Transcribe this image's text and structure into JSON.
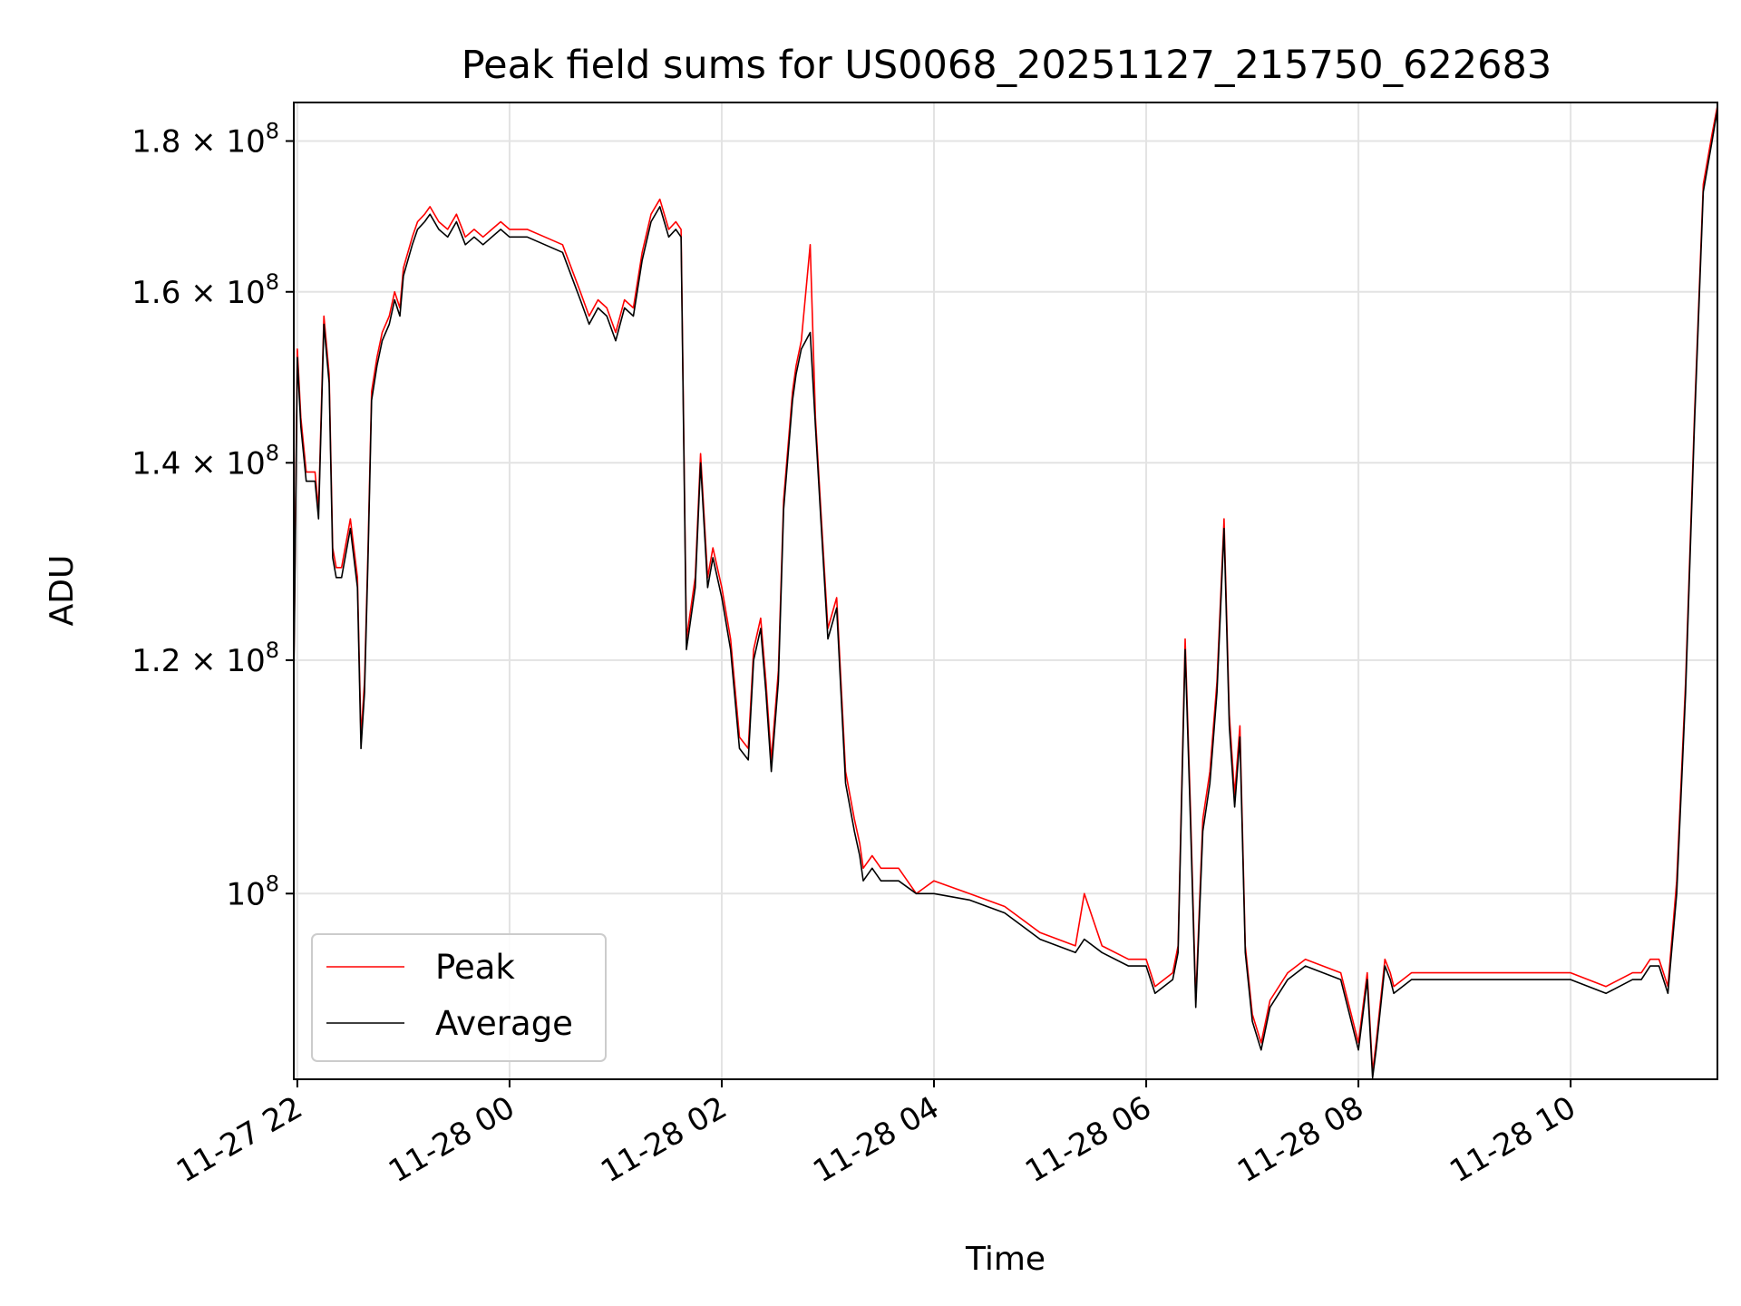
{
  "chart_data": {
    "type": "line",
    "title": "Peak field sums for US0068_20251127_215750_622683",
    "xlabel": "Time",
    "ylabel": "ADU",
    "yscale": "log",
    "grid": true,
    "legend_position": "lower-left",
    "xlim": [
      "2025-11-27 21:58",
      "2025-11-28 11:23"
    ],
    "ylim": [
      86500000,
      185500000
    ],
    "x_ticks": [
      {
        "t": "2025-11-27 22:00",
        "label": "11-27 22"
      },
      {
        "t": "2025-11-28 00:00",
        "label": "11-28 00"
      },
      {
        "t": "2025-11-28 02:00",
        "label": "11-28 02"
      },
      {
        "t": "2025-11-28 04:00",
        "label": "11-28 04"
      },
      {
        "t": "2025-11-28 06:00",
        "label": "11-28 06"
      },
      {
        "t": "2025-11-28 08:00",
        "label": "11-28 08"
      },
      {
        "t": "2025-11-28 10:00",
        "label": "11-28 10"
      }
    ],
    "y_ticks": [
      {
        "value": 120000000,
        "mant": "1.2",
        "exp": "8"
      },
      {
        "value": 140000000,
        "mant": "1.4",
        "exp": "8"
      },
      {
        "value": 160000000,
        "mant": "1.6",
        "exp": "8"
      },
      {
        "value": 180000000,
        "mant": "1.8",
        "exp": "8"
      },
      {
        "value": 100000000,
        "mant": "",
        "exp": "8"
      }
    ],
    "series": [
      {
        "name": "Peak",
        "color": "#ff0000",
        "x": [
          "2025-11-27 21:58",
          "2025-11-27 22:00",
          "2025-11-27 22:02",
          "2025-11-27 22:05",
          "2025-11-27 22:10",
          "2025-11-27 22:12",
          "2025-11-27 22:15",
          "2025-11-27 22:18",
          "2025-11-27 22:20",
          "2025-11-27 22:22",
          "2025-11-27 22:25",
          "2025-11-27 22:30",
          "2025-11-27 22:34",
          "2025-11-27 22:36",
          "2025-11-27 22:38",
          "2025-11-27 22:40",
          "2025-11-27 22:42",
          "2025-11-27 22:45",
          "2025-11-27 22:48",
          "2025-11-27 22:52",
          "2025-11-27 22:55",
          "2025-11-27 22:58",
          "2025-11-27 23:00",
          "2025-11-27 23:05",
          "2025-11-27 23:08",
          "2025-11-27 23:12",
          "2025-11-27 23:15",
          "2025-11-27 23:20",
          "2025-11-27 23:25",
          "2025-11-27 23:30",
          "2025-11-27 23:35",
          "2025-11-27 23:40",
          "2025-11-27 23:45",
          "2025-11-27 23:50",
          "2025-11-27 23:55",
          "2025-11-28 00:00",
          "2025-11-28 00:10",
          "2025-11-28 00:20",
          "2025-11-28 00:30",
          "2025-11-28 00:40",
          "2025-11-28 00:45",
          "2025-11-28 00:50",
          "2025-11-28 00:55",
          "2025-11-28 01:00",
          "2025-11-28 01:05",
          "2025-11-28 01:10",
          "2025-11-28 01:15",
          "2025-11-28 01:20",
          "2025-11-28 01:25",
          "2025-11-28 01:30",
          "2025-11-28 01:34",
          "2025-11-28 01:37",
          "2025-11-28 01:40",
          "2025-11-28 01:45",
          "2025-11-28 01:48",
          "2025-11-28 01:52",
          "2025-11-28 01:55",
          "2025-11-28 02:00",
          "2025-11-28 02:05",
          "2025-11-28 02:10",
          "2025-11-28 02:15",
          "2025-11-28 02:18",
          "2025-11-28 02:22",
          "2025-11-28 02:25",
          "2025-11-28 02:28",
          "2025-11-28 02:32",
          "2025-11-28 02:35",
          "2025-11-28 02:40",
          "2025-11-28 02:42",
          "2025-11-28 02:45",
          "2025-11-28 02:50",
          "2025-11-28 02:53",
          "2025-11-28 02:56",
          "2025-11-28 03:00",
          "2025-11-28 03:05",
          "2025-11-28 03:10",
          "2025-11-28 03:15",
          "2025-11-28 03:18",
          "2025-11-28 03:20",
          "2025-11-28 03:25",
          "2025-11-28 03:30",
          "2025-11-28 03:40",
          "2025-11-28 03:50",
          "2025-11-28 04:00",
          "2025-11-28 04:20",
          "2025-11-28 04:40",
          "2025-11-28 05:00",
          "2025-11-28 05:20",
          "2025-11-28 05:25",
          "2025-11-28 05:35",
          "2025-11-28 05:50",
          "2025-11-28 06:00",
          "2025-11-28 06:05",
          "2025-11-28 06:15",
          "2025-11-28 06:18",
          "2025-11-28 06:22",
          "2025-11-28 06:25",
          "2025-11-28 06:28",
          "2025-11-28 06:32",
          "2025-11-28 06:36",
          "2025-11-28 06:40",
          "2025-11-28 06:44",
          "2025-11-28 06:47",
          "2025-11-28 06:50",
          "2025-11-28 06:53",
          "2025-11-28 06:56",
          "2025-11-28 07:00",
          "2025-11-28 07:05",
          "2025-11-28 07:10",
          "2025-11-28 07:20",
          "2025-11-28 07:30",
          "2025-11-28 07:50",
          "2025-11-28 08:00",
          "2025-11-28 08:05",
          "2025-11-28 08:08",
          "2025-11-28 08:10",
          "2025-11-28 08:15",
          "2025-11-28 08:18",
          "2025-11-28 08:20",
          "2025-11-28 08:30",
          "2025-11-28 09:00",
          "2025-11-28 09:15",
          "2025-11-28 09:30",
          "2025-11-28 10:00",
          "2025-11-28 10:20",
          "2025-11-28 10:35",
          "2025-11-28 10:40",
          "2025-11-28 10:45",
          "2025-11-28 10:50",
          "2025-11-28 10:55",
          "2025-11-28 11:00",
          "2025-11-28 11:05",
          "2025-11-28 11:10",
          "2025-11-28 11:15",
          "2025-11-28 11:20",
          "2025-11-28 11:23"
        ],
        "values": [
          119000000,
          153000000,
          145000000,
          139000000,
          139000000,
          135000000,
          157000000,
          150000000,
          131000000,
          129000000,
          129000000,
          134000000,
          128000000,
          113000000,
          118000000,
          131000000,
          148000000,
          152000000,
          155000000,
          157000000,
          160000000,
          158000000,
          163000000,
          167000000,
          169000000,
          170000000,
          171000000,
          169000000,
          168000000,
          170000000,
          167000000,
          168000000,
          167000000,
          168000000,
          169000000,
          168000000,
          168000000,
          167000000,
          166000000,
          160000000,
          157000000,
          159000000,
          158000000,
          155000000,
          159000000,
          158000000,
          165000000,
          170000000,
          172000000,
          168000000,
          169000000,
          168000000,
          122000000,
          128000000,
          141000000,
          128000000,
          131000000,
          127000000,
          122000000,
          113000000,
          112000000,
          121000000,
          124000000,
          118000000,
          111000000,
          119000000,
          136000000,
          148000000,
          151000000,
          154000000,
          166000000,
          145000000,
          135000000,
          123000000,
          126000000,
          110000000,
          106000000,
          104000000,
          102000000,
          103000000,
          102000000,
          102000000,
          100000000,
          101000000,
          100000000,
          99000000,
          97000000,
          96000000,
          100000000,
          96000000,
          95000000,
          95000000,
          93000000,
          94000000,
          96000000,
          122000000,
          107000000,
          92000000,
          106000000,
          110000000,
          118000000,
          134000000,
          115000000,
          108000000,
          114000000,
          96000000,
          91000000,
          89000000,
          92000000,
          94000000,
          95000000,
          94000000,
          89000000,
          94000000,
          87000000,
          89000000,
          95000000,
          94000000,
          93000000,
          94000000,
          94000000,
          94000000,
          94000000,
          94000000,
          93000000,
          94000000,
          94000000,
          95000000,
          95000000,
          93000000,
          101000000,
          118000000,
          145000000,
          174000000,
          181000000,
          185000000
        ]
      },
      {
        "name": "Average",
        "color": "#000000",
        "x": [
          "2025-11-27 21:58",
          "2025-11-27 22:00",
          "2025-11-27 22:02",
          "2025-11-27 22:05",
          "2025-11-27 22:10",
          "2025-11-27 22:12",
          "2025-11-27 22:15",
          "2025-11-27 22:18",
          "2025-11-27 22:20",
          "2025-11-27 22:22",
          "2025-11-27 22:25",
          "2025-11-27 22:30",
          "2025-11-27 22:34",
          "2025-11-27 22:36",
          "2025-11-27 22:38",
          "2025-11-27 22:40",
          "2025-11-27 22:42",
          "2025-11-27 22:45",
          "2025-11-27 22:48",
          "2025-11-27 22:52",
          "2025-11-27 22:55",
          "2025-11-27 22:58",
          "2025-11-27 23:00",
          "2025-11-27 23:05",
          "2025-11-27 23:08",
          "2025-11-27 23:12",
          "2025-11-27 23:15",
          "2025-11-27 23:20",
          "2025-11-27 23:25",
          "2025-11-27 23:30",
          "2025-11-27 23:35",
          "2025-11-27 23:40",
          "2025-11-27 23:45",
          "2025-11-27 23:50",
          "2025-11-27 23:55",
          "2025-11-28 00:00",
          "2025-11-28 00:10",
          "2025-11-28 00:20",
          "2025-11-28 00:30",
          "2025-11-28 00:40",
          "2025-11-28 00:45",
          "2025-11-28 00:50",
          "2025-11-28 00:55",
          "2025-11-28 01:00",
          "2025-11-28 01:05",
          "2025-11-28 01:10",
          "2025-11-28 01:15",
          "2025-11-28 01:20",
          "2025-11-28 01:25",
          "2025-11-28 01:30",
          "2025-11-28 01:34",
          "2025-11-28 01:37",
          "2025-11-28 01:40",
          "2025-11-28 01:45",
          "2025-11-28 01:48",
          "2025-11-28 01:52",
          "2025-11-28 01:55",
          "2025-11-28 02:00",
          "2025-11-28 02:05",
          "2025-11-28 02:10",
          "2025-11-28 02:15",
          "2025-11-28 02:18",
          "2025-11-28 02:22",
          "2025-11-28 02:25",
          "2025-11-28 02:28",
          "2025-11-28 02:32",
          "2025-11-28 02:35",
          "2025-11-28 02:40",
          "2025-11-28 02:42",
          "2025-11-28 02:45",
          "2025-11-28 02:50",
          "2025-11-28 02:53",
          "2025-11-28 02:56",
          "2025-11-28 03:00",
          "2025-11-28 03:05",
          "2025-11-28 03:10",
          "2025-11-28 03:15",
          "2025-11-28 03:18",
          "2025-11-28 03:20",
          "2025-11-28 03:25",
          "2025-11-28 03:30",
          "2025-11-28 03:40",
          "2025-11-28 03:50",
          "2025-11-28 04:00",
          "2025-11-28 04:20",
          "2025-11-28 04:40",
          "2025-11-28 05:00",
          "2025-11-28 05:20",
          "2025-11-28 05:25",
          "2025-11-28 05:35",
          "2025-11-28 05:50",
          "2025-11-28 06:00",
          "2025-11-28 06:05",
          "2025-11-28 06:15",
          "2025-11-28 06:18",
          "2025-11-28 06:22",
          "2025-11-28 06:25",
          "2025-11-28 06:28",
          "2025-11-28 06:32",
          "2025-11-28 06:36",
          "2025-11-28 06:40",
          "2025-11-28 06:44",
          "2025-11-28 06:47",
          "2025-11-28 06:50",
          "2025-11-28 06:53",
          "2025-11-28 06:56",
          "2025-11-28 07:00",
          "2025-11-28 07:05",
          "2025-11-28 07:10",
          "2025-11-28 07:20",
          "2025-11-28 07:30",
          "2025-11-28 07:50",
          "2025-11-28 08:00",
          "2025-11-28 08:05",
          "2025-11-28 08:08",
          "2025-11-28 08:10",
          "2025-11-28 08:15",
          "2025-11-28 08:18",
          "2025-11-28 08:20",
          "2025-11-28 08:30",
          "2025-11-28 09:00",
          "2025-11-28 09:15",
          "2025-11-28 09:30",
          "2025-11-28 10:00",
          "2025-11-28 10:20",
          "2025-11-28 10:35",
          "2025-11-28 10:40",
          "2025-11-28 10:45",
          "2025-11-28 10:50",
          "2025-11-28 10:55",
          "2025-11-28 11:00",
          "2025-11-28 11:05",
          "2025-11-28 11:10",
          "2025-11-28 11:15",
          "2025-11-28 11:20",
          "2025-11-28 11:23"
        ],
        "values": [
          118000000,
          152000000,
          144000000,
          138000000,
          138000000,
          134000000,
          156000000,
          149000000,
          130000000,
          128000000,
          128000000,
          133000000,
          127000000,
          112000000,
          117000000,
          130000000,
          147000000,
          151000000,
          154000000,
          156000000,
          159000000,
          157000000,
          162000000,
          166000000,
          168000000,
          169000000,
          170000000,
          168000000,
          167000000,
          169000000,
          166000000,
          167000000,
          166000000,
          167000000,
          168000000,
          167000000,
          167000000,
          166000000,
          165000000,
          159000000,
          156000000,
          158000000,
          157000000,
          154000000,
          158000000,
          157000000,
          164000000,
          169000000,
          171000000,
          167000000,
          168000000,
          167000000,
          121000000,
          127000000,
          140000000,
          127000000,
          130000000,
          126000000,
          121000000,
          112000000,
          111000000,
          120000000,
          123000000,
          117000000,
          110000000,
          118000000,
          135000000,
          147000000,
          150000000,
          153000000,
          155000000,
          144000000,
          134000000,
          122000000,
          125000000,
          109000000,
          105000000,
          103000000,
          101000000,
          102000000,
          101000000,
          101000000,
          100000000,
          100000000,
          99500000,
          98500000,
          96500000,
          95500000,
          96500000,
          95500000,
          94500000,
          94500000,
          92500000,
          93500000,
          95500000,
          121000000,
          106000000,
          91500000,
          105000000,
          109000000,
          117000000,
          133000000,
          114000000,
          107000000,
          113000000,
          95500000,
          90500000,
          88500000,
          91500000,
          93500000,
          94500000,
          93500000,
          88500000,
          93500000,
          86600000,
          88500000,
          94500000,
          93500000,
          92500000,
          93500000,
          93500000,
          93500000,
          93500000,
          93500000,
          92500000,
          93500000,
          93500000,
          94500000,
          94500000,
          92500000,
          100000000,
          117000000,
          144000000,
          173000000,
          180000000,
          184500000
        ]
      }
    ]
  }
}
